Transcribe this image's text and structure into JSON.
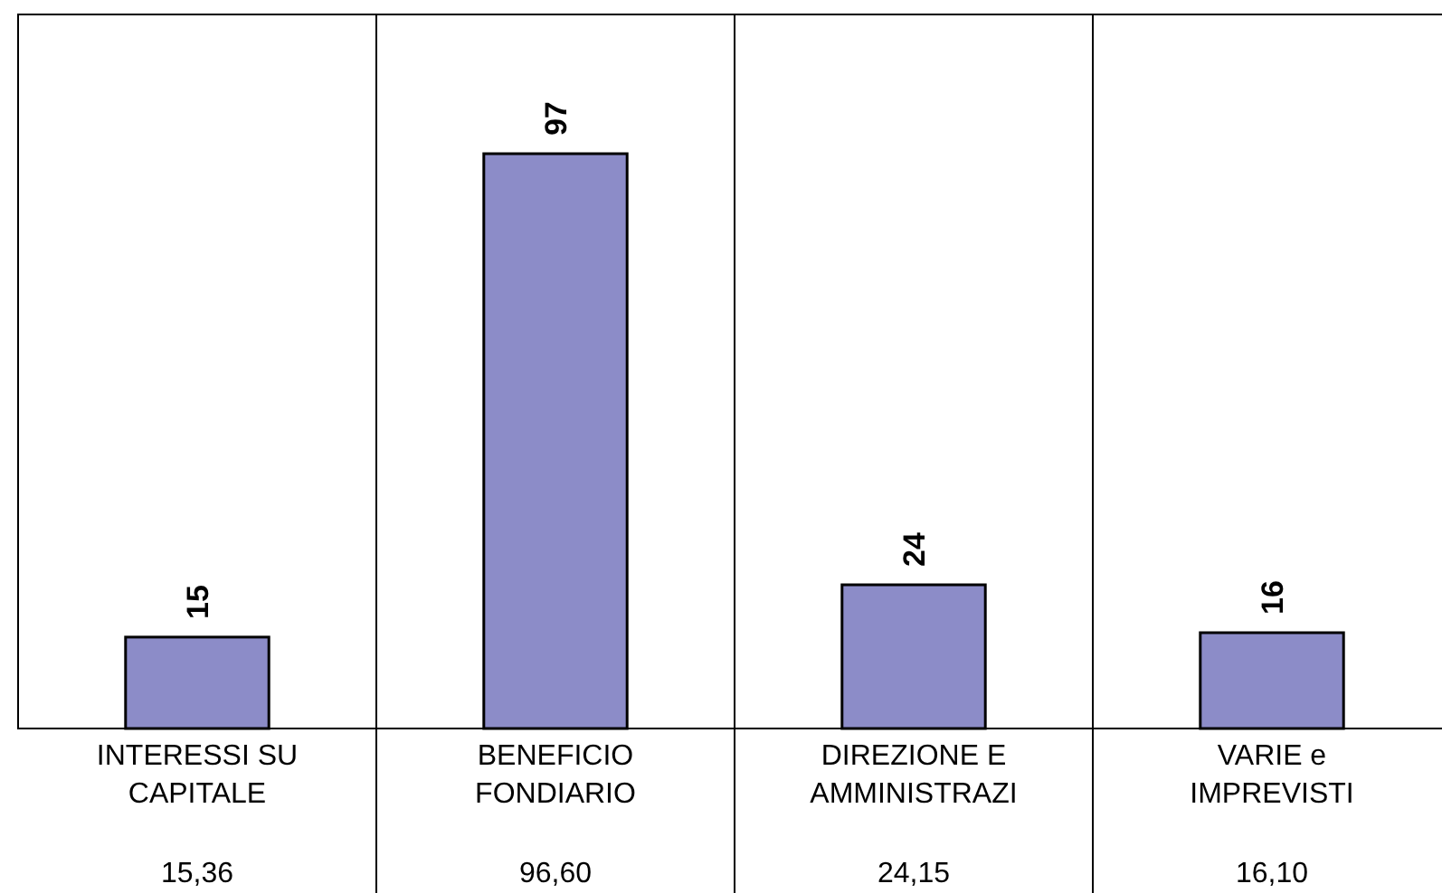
{
  "chart_data": {
    "type": "bar",
    "categories": [
      "INTERESSI SU CAPITALE",
      "BENEFICIO FONDIARIO",
      "DIREZIONE E AMMINISTRAZI",
      "VARIE e IMPREVISTI"
    ],
    "values": [
      15.36,
      96.6,
      24.15,
      16.1
    ],
    "value_labels": [
      "15",
      "97",
      "24",
      "16"
    ],
    "color": "#8c8cc8",
    "ylim": [
      0,
      120
    ],
    "grid": "x",
    "annotations": [
      "15,36",
      "96,60",
      "24,15",
      "16,10"
    ]
  }
}
